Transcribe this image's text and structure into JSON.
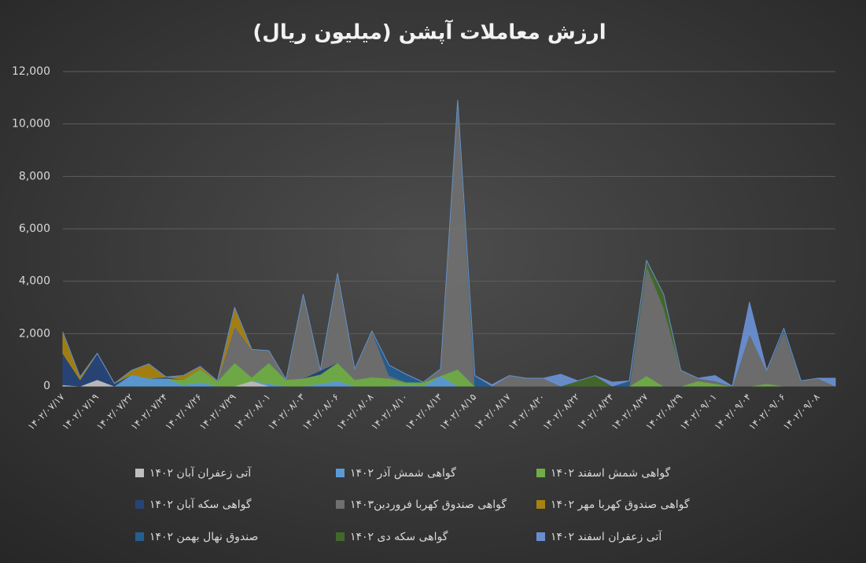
{
  "chart_data": {
    "type": "stacked-area",
    "title": "ارزش معاملات آپشن (میلیون ریال)",
    "categories": [
      "۱۴۰۲/۰۷/۱۷",
      null,
      "۱۴۰۲/۰۷/۱۹",
      null,
      "۱۴۰۲/۰۷/۲۲",
      null,
      "۱۴۰۲/۰۷/۲۴",
      null,
      "۱۴۰۲/۰۷/۲۶",
      null,
      "۱۴۰۲/۰۷/۲۹",
      null,
      "۱۴۰۲/۰۸/۰۱",
      null,
      "۱۴۰۲/۰۸/۰۳",
      null,
      "۱۴۰۲/۰۸/۰۶",
      null,
      "۱۴۰۲/۰۸/۰۸",
      null,
      "۱۴۰۲/۰۸/۱۰",
      null,
      "۱۴۰۲/۰۸/۱۳",
      null,
      "۱۴۰۲/۰۸/۱۵",
      null,
      "۱۴۰۲/۰۸/۱۷",
      null,
      "۱۴۰۲/۰۸/۲۰",
      null,
      "۱۴۰۲/۰۸/۲۲",
      null,
      "۱۴۰۲/۰۸/۲۴",
      null,
      "۱۴۰۲/۰۸/۲۷",
      null,
      "۱۴۰۲/۰۸/۲۹",
      null,
      "۱۴۰۲/۰۹/۰۱",
      null,
      "۱۴۰۲/۰۹/۰۴",
      null,
      "۱۴۰۲/۰۹/۰۶",
      null,
      "۱۴۰۲/۰۹/۰۸",
      null
    ],
    "series": [
      {
        "name": "آتی زعفران آبان ۱۴۰۲",
        "color": "#bfbfbf",
        "values": [
          50,
          0,
          250,
          0,
          0,
          0,
          0,
          0,
          0,
          0,
          0,
          200,
          0,
          0,
          0,
          0,
          0,
          0,
          0,
          0,
          0,
          0,
          0,
          0,
          0,
          0,
          0,
          0,
          0,
          0,
          0,
          0,
          0,
          0,
          0,
          0,
          0,
          0,
          0,
          0,
          0,
          0,
          0,
          0,
          0,
          0
        ]
      },
      {
        "name": "گواهی شمش آذر ۱۴۰۲",
        "color": "#5b9bd5",
        "values": [
          0,
          0,
          0,
          0,
          450,
          300,
          300,
          50,
          150,
          0,
          0,
          0,
          100,
          0,
          0,
          100,
          200,
          0,
          0,
          0,
          50,
          0,
          400,
          0,
          0,
          0,
          0,
          0,
          0,
          0,
          0,
          0,
          0,
          0,
          0,
          0,
          0,
          0,
          0,
          0,
          0,
          0,
          0,
          0,
          0,
          0
        ]
      },
      {
        "name": "گواهی شمش اسفند ۱۴۰۲",
        "color": "#70ad47",
        "values": [
          0,
          0,
          0,
          0,
          0,
          0,
          0,
          200,
          500,
          200,
          900,
          150,
          800,
          250,
          300,
          350,
          700,
          250,
          350,
          300,
          100,
          150,
          0,
          650,
          0,
          0,
          0,
          0,
          0,
          0,
          0,
          0,
          0,
          0,
          400,
          0,
          0,
          200,
          100,
          0,
          0,
          100,
          0,
          0,
          0,
          0
        ]
      },
      {
        "name": "گواهی سکه آبان ۱۴۰۲",
        "color": "#264478",
        "values": [
          1200,
          250,
          1000,
          100,
          0,
          0,
          50,
          0,
          0,
          0,
          0,
          0,
          0,
          0,
          0,
          150,
          0,
          0,
          0,
          0,
          0,
          0,
          0,
          0,
          0,
          0,
          0,
          0,
          0,
          0,
          0,
          0,
          0,
          0,
          0,
          0,
          0,
          0,
          0,
          0,
          0,
          0,
          0,
          0,
          0,
          0
        ]
      },
      {
        "name": "گواهی صندوق کهربا فروردین۱۴۰۳",
        "color": "#6f6f6f",
        "values": [
          0,
          0,
          0,
          0,
          0,
          0,
          0,
          0,
          0,
          0,
          1400,
          1050,
          450,
          0,
          3200,
          0,
          3400,
          400,
          1750,
          100,
          0,
          0,
          250,
          10250,
          0,
          0,
          400,
          300,
          300,
          0,
          0,
          0,
          0,
          0,
          4200,
          3000,
          600,
          100,
          100,
          0,
          2000,
          500,
          2100,
          200,
          300,
          0
        ]
      },
      {
        "name": "گواهی صندوق کهربا مهر ۱۴۰۲",
        "color": "#a8820e",
        "values": [
          800,
          100,
          0,
          0,
          150,
          550,
          0,
          150,
          100,
          0,
          700,
          0,
          0,
          0,
          0,
          0,
          0,
          0,
          0,
          0,
          0,
          0,
          0,
          0,
          0,
          0,
          0,
          0,
          0,
          0,
          0,
          0,
          0,
          0,
          0,
          0,
          0,
          0,
          0,
          0,
          0,
          0,
          0,
          0,
          0,
          0
        ]
      },
      {
        "name": "صندوق نهال بهمن ۱۴۰۲",
        "color": "#255e91",
        "values": [
          0,
          0,
          0,
          0,
          0,
          0,
          0,
          0,
          0,
          0,
          0,
          0,
          0,
          0,
          0,
          0,
          0,
          0,
          0,
          400,
          300,
          0,
          0,
          0,
          400,
          0,
          0,
          0,
          0,
          0,
          0,
          0,
          0,
          200,
          0,
          0,
          0,
          0,
          0,
          0,
          0,
          0,
          100,
          0,
          0,
          0
        ]
      },
      {
        "name": "گواهی سکه دی ۱۴۰۲",
        "color": "#43682b",
        "values": [
          0,
          0,
          0,
          0,
          0,
          0,
          0,
          0,
          0,
          0,
          0,
          0,
          0,
          0,
          0,
          0,
          0,
          0,
          0,
          0,
          0,
          0,
          0,
          0,
          0,
          0,
          0,
          0,
          0,
          0,
          200,
          400,
          0,
          0,
          200,
          500,
          0,
          0,
          0,
          0,
          0,
          0,
          0,
          0,
          0,
          0
        ]
      },
      {
        "name": "آتی زعفران اسفند ۱۴۰۲",
        "color": "#698ed0",
        "values": [
          0,
          0,
          0,
          0,
          0,
          0,
          0,
          0,
          0,
          0,
          0,
          0,
          0,
          0,
          0,
          0,
          0,
          0,
          0,
          0,
          0,
          0,
          0,
          0,
          0,
          50,
          0,
          0,
          0,
          450,
          0,
          0,
          150,
          0,
          0,
          0,
          0,
          0,
          200,
          0,
          1200,
          0,
          0,
          0,
          0,
          300
        ]
      }
    ],
    "ylim": [
      0,
      12000
    ],
    "yticks": [
      0,
      {
        "value": 2000,
        "label": "2,000"
      },
      {
        "value": 4000,
        "label": "4,000"
      },
      {
        "value": 6000,
        "label": "6,000"
      },
      {
        "value": 8000,
        "label": "8,000"
      },
      {
        "value": 10000,
        "label": "10,000"
      },
      {
        "value": 12000,
        "label": "12,000"
      }
    ],
    "grid": true
  }
}
